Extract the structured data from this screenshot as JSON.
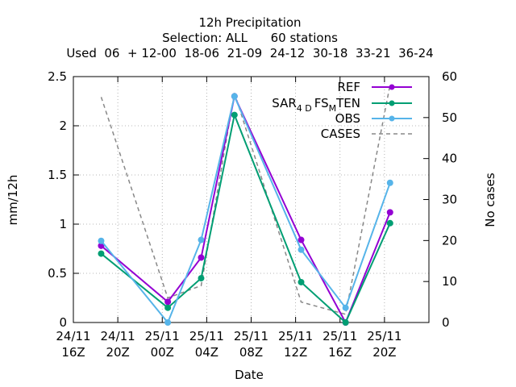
{
  "chart_data": {
    "type": "line",
    "title": "12h Precipitation",
    "subtitle_1": "Selection: ALL      60 stations",
    "subtitle_2": "Used  06  + 12-00  18-06  21-09  24-12  30-18  33-21  36-24",
    "xlabel": "Date",
    "ylabel": "mm/12h",
    "y2label": "No cases",
    "ylim": [
      0,
      2.5
    ],
    "y2lim": [
      0,
      60
    ],
    "xlim_hours": [
      0,
      32
    ],
    "grid": true,
    "legend_position": "top-right",
    "y_ticks": [
      "0",
      "0.5",
      "1",
      "1.5",
      "2",
      "2.5"
    ],
    "y_tick_values": [
      0,
      0.5,
      1,
      1.5,
      2,
      2.5
    ],
    "y2_ticks": [
      "0",
      "10",
      "20",
      "30",
      "40",
      "50",
      "60"
    ],
    "y2_tick_values": [
      0,
      10,
      20,
      30,
      40,
      50,
      60
    ],
    "x_ticks": [
      {
        "line1": "24/11",
        "line2": "16Z",
        "hour": 0
      },
      {
        "line1": "24/11",
        "line2": "20Z",
        "hour": 4
      },
      {
        "line1": "25/11",
        "line2": "00Z",
        "hour": 8
      },
      {
        "line1": "25/11",
        "line2": "04Z",
        "hour": 12
      },
      {
        "line1": "25/11",
        "line2": "08Z",
        "hour": 16
      },
      {
        "line1": "25/11",
        "line2": "12Z",
        "hour": 20
      },
      {
        "line1": "25/11",
        "line2": "16Z",
        "hour": 24
      },
      {
        "line1": "25/11",
        "line2": "20Z",
        "hour": 28
      }
    ],
    "x_hours": [
      2.5,
      8.5,
      11.5,
      14.5,
      20.5,
      24.5,
      28.5
    ],
    "series": [
      {
        "name": "REF",
        "color": "#9400d3",
        "axis": "y1",
        "marker": true,
        "dashed": false,
        "values": [
          0.78,
          0.21,
          0.66,
          2.3,
          0.84,
          0.0,
          1.12
        ]
      },
      {
        "name": "SAR_4D FS_M TEN",
        "color": "#009e73",
        "axis": "y1",
        "marker": true,
        "dashed": false,
        "values": [
          0.7,
          0.15,
          0.45,
          2.11,
          0.41,
          0.0,
          1.01
        ]
      },
      {
        "name": "OBS",
        "color": "#56b4e9",
        "axis": "y1",
        "marker": true,
        "dashed": false,
        "values": [
          0.83,
          0.0,
          0.84,
          2.3,
          0.74,
          0.15,
          1.42
        ]
      },
      {
        "name": "CASES",
        "color": "#888888",
        "axis": "y2",
        "marker": false,
        "dashed": true,
        "values": [
          55,
          6,
          9,
          56,
          5,
          2,
          58
        ]
      }
    ],
    "legend": {
      "ref": "REF",
      "ten_main": "SAR",
      "ten_sub1": "4 D",
      "ten_mid": "FS",
      "ten_sub2": "M",
      "ten_end": "TEN",
      "obs": "OBS",
      "cases": "CASES"
    }
  }
}
